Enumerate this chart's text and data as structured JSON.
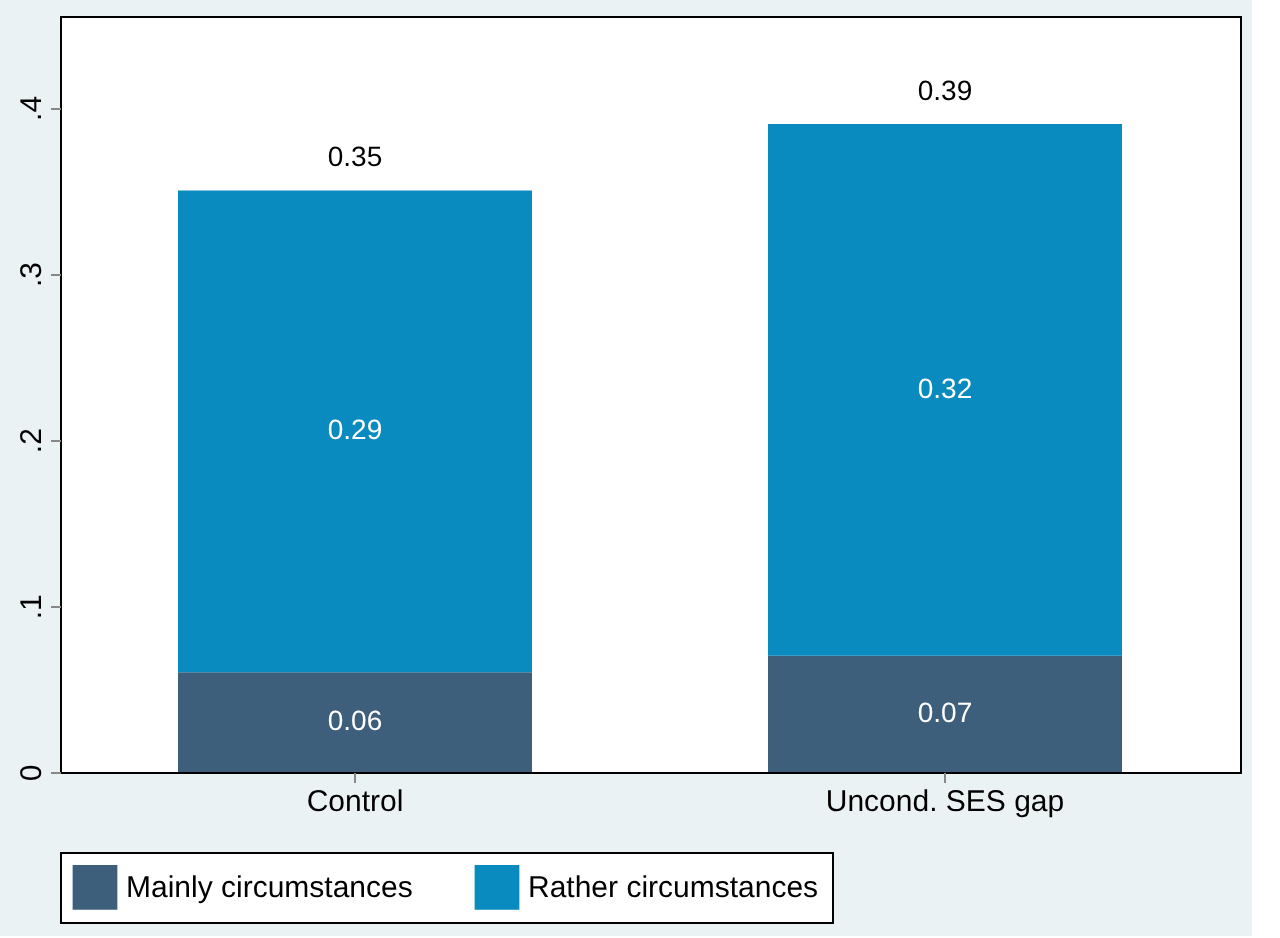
{
  "chart_data": {
    "type": "bar",
    "stacked": true,
    "categories": [
      "Control",
      "Uncond. SES gap"
    ],
    "series": [
      {
        "name": "Mainly circumstances",
        "color": "#3e5f7b",
        "values": [
          0.06,
          0.07
        ]
      },
      {
        "name": "Rather circumstances",
        "color": "#0a8bbf",
        "values": [
          0.29,
          0.32
        ]
      }
    ],
    "totals": [
      "0.35",
      "0.39"
    ],
    "data_labels": true,
    "ylim": [
      0,
      0.455
    ],
    "yticks": [
      0,
      {
        "value": 0.1,
        "label": ".1"
      },
      {
        "value": 0.2,
        "label": ".2"
      },
      {
        "value": 0.3,
        "label": ".3"
      },
      {
        "value": 0.4,
        "label": ".4"
      }
    ],
    "grid": false,
    "legend": "bottom"
  }
}
